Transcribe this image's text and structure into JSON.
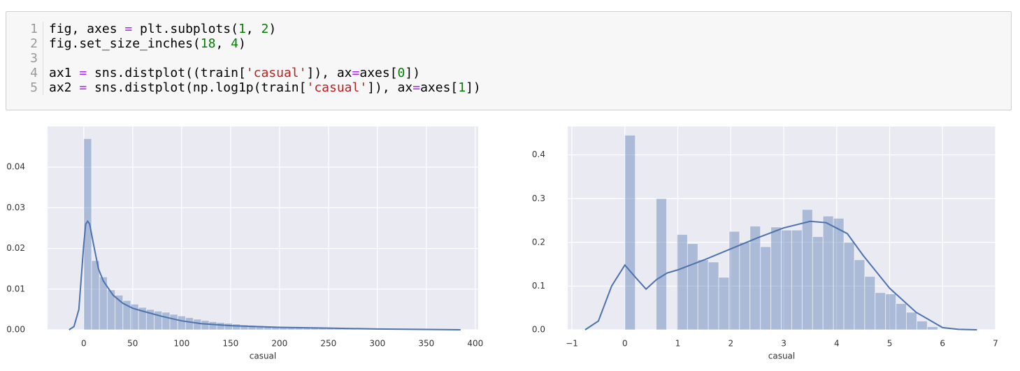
{
  "code": {
    "lines": [
      {
        "number": "1",
        "tokens": [
          {
            "text": "fig, axes ",
            "color": "#000000"
          },
          {
            "text": "=",
            "color": "#aa22ff"
          },
          {
            "text": " plt.subplots(",
            "color": "#000000"
          },
          {
            "text": "1",
            "color": "#008000"
          },
          {
            "text": ", ",
            "color": "#000000"
          },
          {
            "text": "2",
            "color": "#008000"
          },
          {
            "text": ")",
            "color": "#000000"
          }
        ]
      },
      {
        "number": "2",
        "tokens": [
          {
            "text": "fig.set_size_inches(",
            "color": "#000000"
          },
          {
            "text": "18",
            "color": "#008000"
          },
          {
            "text": ", ",
            "color": "#000000"
          },
          {
            "text": "4",
            "color": "#008000"
          },
          {
            "text": ")",
            "color": "#000000"
          }
        ]
      },
      {
        "number": "3",
        "tokens": []
      },
      {
        "number": "4",
        "tokens": [
          {
            "text": "ax1 ",
            "color": "#000000"
          },
          {
            "text": "=",
            "color": "#aa22ff"
          },
          {
            "text": " sns.distplot((train[",
            "color": "#000000"
          },
          {
            "text": "'casual'",
            "color": "#ba2121"
          },
          {
            "text": "]), ax",
            "color": "#000000"
          },
          {
            "text": "=",
            "color": "#aa22ff"
          },
          {
            "text": "axes[",
            "color": "#000000"
          },
          {
            "text": "0",
            "color": "#008000"
          },
          {
            "text": "])",
            "color": "#000000"
          }
        ]
      },
      {
        "number": "5",
        "tokens": [
          {
            "text": "ax2 ",
            "color": "#000000"
          },
          {
            "text": "=",
            "color": "#aa22ff"
          },
          {
            "text": " sns.distplot(np.log1p(train[",
            "color": "#000000"
          },
          {
            "text": "'casual'",
            "color": "#ba2121"
          },
          {
            "text": "]), ax",
            "color": "#000000"
          },
          {
            "text": "=",
            "color": "#aa22ff"
          },
          {
            "text": "axes[",
            "color": "#000000"
          },
          {
            "text": "1",
            "color": "#008000"
          },
          {
            "text": "])",
            "color": "#000000"
          }
        ]
      }
    ]
  },
  "chart_data": [
    {
      "type": "histogram",
      "xlabel": "casual",
      "color": "#4c72b0",
      "grid": true,
      "bins": [
        0,
        8,
        16,
        24,
        32,
        40,
        48,
        56,
        64,
        72,
        80,
        88,
        96,
        104,
        112,
        120,
        128,
        136,
        144,
        152,
        160,
        168,
        176,
        184,
        192,
        200,
        208,
        216,
        224,
        232,
        240,
        248,
        256,
        264,
        272,
        280,
        288,
        296,
        304,
        312,
        320,
        328,
        336,
        344,
        352,
        360,
        368
      ],
      "values": [
        0.047,
        0.017,
        0.013,
        0.0098,
        0.0085,
        0.0072,
        0.0063,
        0.0055,
        0.005,
        0.0046,
        0.0043,
        0.0038,
        0.0034,
        0.003,
        0.0026,
        0.0023,
        0.002,
        0.0018,
        0.0016,
        0.0014,
        0.0012,
        0.0011,
        0.001,
        0.0009,
        0.0008,
        0.0007,
        0.0007,
        0.0006,
        0.0006,
        0.0005,
        0.0005,
        0.0004,
        0.0004,
        0.0004,
        0.0003,
        0.0003,
        0.0003,
        0.0002,
        0.0002,
        0.0002,
        0.0002,
        0.0001,
        0.0001,
        0.0001,
        0.0001,
        0.0001
      ],
      "kde": {
        "x": [
          -15,
          -10,
          -5,
          0,
          2,
          4,
          6,
          10,
          15,
          20,
          30,
          40,
          50,
          60,
          80,
          100,
          120,
          150,
          200,
          250,
          300,
          385
        ],
        "y": [
          0,
          0.0008,
          0.005,
          0.021,
          0.026,
          0.0267,
          0.026,
          0.021,
          0.015,
          0.012,
          0.0085,
          0.0065,
          0.0053,
          0.0046,
          0.0033,
          0.0022,
          0.0015,
          0.001,
          0.0006,
          0.0004,
          0.0002,
          0
        ]
      },
      "xlim": [
        -37,
        403
      ],
      "ylim": [
        0,
        0.05
      ],
      "xticks": [
        0,
        50,
        100,
        150,
        200,
        250,
        300,
        350,
        400
      ],
      "yticks": [
        {
          "value": 0,
          "label": "0.00"
        },
        0.01,
        0.02,
        0.03,
        0.04
      ]
    },
    {
      "type": "histogram",
      "xlabel": "casual",
      "color": "#4c72b0",
      "grid": true,
      "bins": [
        0,
        0.197,
        0.394,
        0.591,
        0.788,
        0.985,
        1.182,
        1.379,
        1.576,
        1.772,
        1.969,
        2.166,
        2.363,
        2.56,
        2.757,
        2.954,
        3.151,
        3.348,
        3.545,
        3.742,
        3.939,
        4.136,
        4.333,
        4.529,
        4.726,
        4.923,
        5.12,
        5.317,
        5.514,
        5.711,
        5.908
      ],
      "values": [
        0.445,
        0,
        0,
        0.3,
        0,
        0.218,
        0.197,
        0.16,
        0.155,
        0.12,
        0.225,
        0.2,
        0.237,
        0.19,
        0.235,
        0.228,
        0.228,
        0.275,
        0.213,
        0.26,
        0.255,
        0.2,
        0.16,
        0.122,
        0.085,
        0.082,
        0.06,
        0.04,
        0.02,
        0.007
      ],
      "kde": {
        "x": [
          -0.75,
          -0.5,
          -0.25,
          0,
          0.2,
          0.4,
          0.6,
          0.8,
          1,
          1.5,
          2,
          2.5,
          3,
          3.5,
          3.8,
          4.2,
          4.5,
          5,
          5.5,
          6,
          6.3,
          6.65
        ],
        "y": [
          0,
          0.02,
          0.1,
          0.148,
          0.12,
          0.093,
          0.115,
          0.13,
          0.137,
          0.16,
          0.185,
          0.21,
          0.233,
          0.248,
          0.245,
          0.22,
          0.17,
          0.095,
          0.04,
          0.005,
          0.001,
          0
        ]
      },
      "xlim": [
        -1.08,
        7.0
      ],
      "ylim": [
        0,
        0.465
      ],
      "xticks": [
        {
          "value": -1,
          "label": "−1"
        },
        0,
        1,
        2,
        3,
        4,
        5,
        6,
        7
      ],
      "yticks": [
        {
          "value": 0,
          "label": "0.0"
        },
        0.1,
        0.2,
        0.3,
        0.4
      ]
    }
  ]
}
